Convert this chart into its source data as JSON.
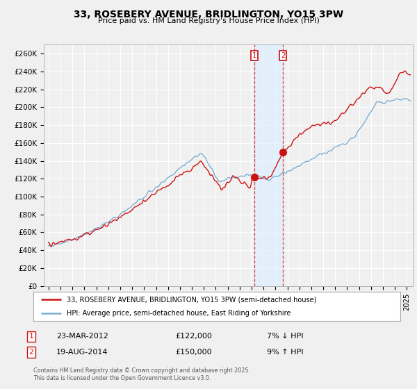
{
  "title": "33, ROSEBERY AVENUE, BRIDLINGTON, YO15 3PW",
  "subtitle": "Price paid vs. HM Land Registry's House Price Index (HPI)",
  "ylabel_ticks": [
    "£0",
    "£20K",
    "£40K",
    "£60K",
    "£80K",
    "£100K",
    "£120K",
    "£140K",
    "£160K",
    "£180K",
    "£200K",
    "£220K",
    "£240K",
    "£260K"
  ],
  "ylim": [
    0,
    270000
  ],
  "ytick_vals": [
    0,
    20000,
    40000,
    60000,
    80000,
    100000,
    120000,
    140000,
    160000,
    180000,
    200000,
    220000,
    240000,
    260000
  ],
  "xlim_start": 1994.6,
  "xlim_end": 2025.5,
  "legend_line1": "33, ROSEBERY AVENUE, BRIDLINGTON, YO15 3PW (semi-detached house)",
  "legend_line2": "HPI: Average price, semi-detached house, East Riding of Yorkshire",
  "sale1_label": "1",
  "sale1_date": "23-MAR-2012",
  "sale1_price": "£122,000",
  "sale1_pct": "7% ↓ HPI",
  "sale2_label": "2",
  "sale2_date": "19-AUG-2014",
  "sale2_price": "£150,000",
  "sale2_pct": "9% ↑ HPI",
  "footer": "Contains HM Land Registry data © Crown copyright and database right 2025.\nThis data is licensed under the Open Government Licence v3.0.",
  "hpi_color": "#7bafd4",
  "price_color": "#cc1111",
  "shade_color": "#ddeeff",
  "sale1_x": 2012.22,
  "sale1_y": 122000,
  "sale2_x": 2014.63,
  "sale2_y": 150000,
  "bg_color": "#f0f0f0",
  "plot_bg_color": "#f0f0f0",
  "grid_color": "#ffffff",
  "xtick_years": [
    1995,
    1996,
    1997,
    1998,
    1999,
    2000,
    2001,
    2002,
    2003,
    2004,
    2005,
    2006,
    2007,
    2008,
    2009,
    2010,
    2011,
    2012,
    2013,
    2014,
    2015,
    2016,
    2017,
    2018,
    2019,
    2020,
    2021,
    2022,
    2023,
    2024,
    2025
  ]
}
